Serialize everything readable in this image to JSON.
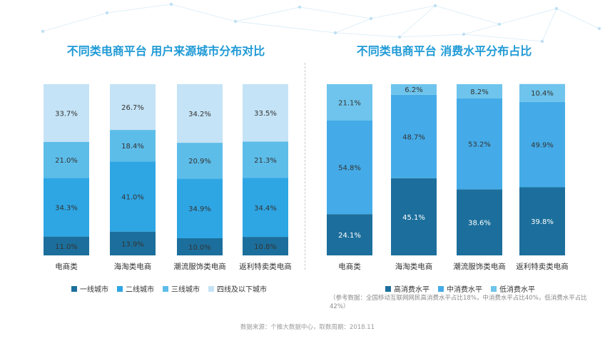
{
  "colors": {
    "tier1": "#1c6f9c",
    "tier2": "#2ea6e4",
    "tier3": "#5dbde9",
    "tier4": "#c4e3f6",
    "high": "#1c6f9c",
    "mid": "#44abe8",
    "low": "#6ec4ec",
    "title": "#1f9ad6"
  },
  "left": {
    "title": "不同类电商平台 用户来源城市分布对比",
    "legend": [
      "一线城市",
      "二线城市",
      "三线城市",
      "四线及以下城市"
    ]
  },
  "right": {
    "title": "不同类电商平台 消费水平分布占比",
    "legend": [
      "高消费水平",
      "中消费水平",
      "低消费水平"
    ],
    "note": "（参考数据：全国移动互联网网民高消费水平占比18%，中消费水平占比40%，低消费水平占比42%）"
  },
  "source": "数据来源：个推大数据中心，取数周期：2018.11",
  "chart_data": [
    {
      "type": "bar",
      "stacked": true,
      "title": "不同类电商平台 用户来源城市分布对比",
      "categories": [
        "电商类",
        "海淘类电商",
        "潮流服饰类电商",
        "返利特卖类电商"
      ],
      "series": [
        {
          "name": "一线城市",
          "values": [
            11.0,
            13.9,
            10.0,
            10.8
          ]
        },
        {
          "name": "二线城市",
          "values": [
            34.3,
            41.0,
            34.9,
            34.4
          ]
        },
        {
          "name": "三线城市",
          "values": [
            21.0,
            18.4,
            20.9,
            21.3
          ]
        },
        {
          "name": "四线及以下城市",
          "values": [
            33.7,
            26.7,
            34.2,
            33.5
          ]
        }
      ],
      "labels": [
        [
          "11.0%",
          "13.9%",
          "10.0%",
          "10.8%"
        ],
        [
          "34.3%",
          "41.0%",
          "34.9%",
          "34.4%"
        ],
        [
          "21.0%",
          "18.4%",
          "20.9%",
          "21.3%"
        ],
        [
          "33.7%",
          "26.7%",
          "34.2%",
          "33.5%"
        ]
      ],
      "ylim": [
        0,
        100
      ],
      "legend_position": "bottom"
    },
    {
      "type": "bar",
      "stacked": true,
      "title": "不同类电商平台 消费水平分布占比",
      "categories": [
        "电商类",
        "海淘类电商",
        "潮流服饰类电商",
        "返利特卖类电商"
      ],
      "series": [
        {
          "name": "高消费水平",
          "values": [
            24.1,
            45.1,
            38.6,
            39.8
          ]
        },
        {
          "name": "中消费水平",
          "values": [
            54.8,
            48.7,
            53.2,
            49.9
          ]
        },
        {
          "name": "低消费水平",
          "values": [
            21.1,
            6.2,
            8.2,
            10.4
          ]
        }
      ],
      "labels": [
        [
          "24.1%",
          "45.1%",
          "38.6%",
          "39.8%"
        ],
        [
          "54.8%",
          "48.7%",
          "53.2%",
          "49.9%"
        ],
        [
          "21.1%",
          "6.2%",
          "8.2%",
          "10.4%"
        ]
      ],
      "ylim": [
        0,
        100
      ],
      "legend_position": "bottom"
    }
  ]
}
